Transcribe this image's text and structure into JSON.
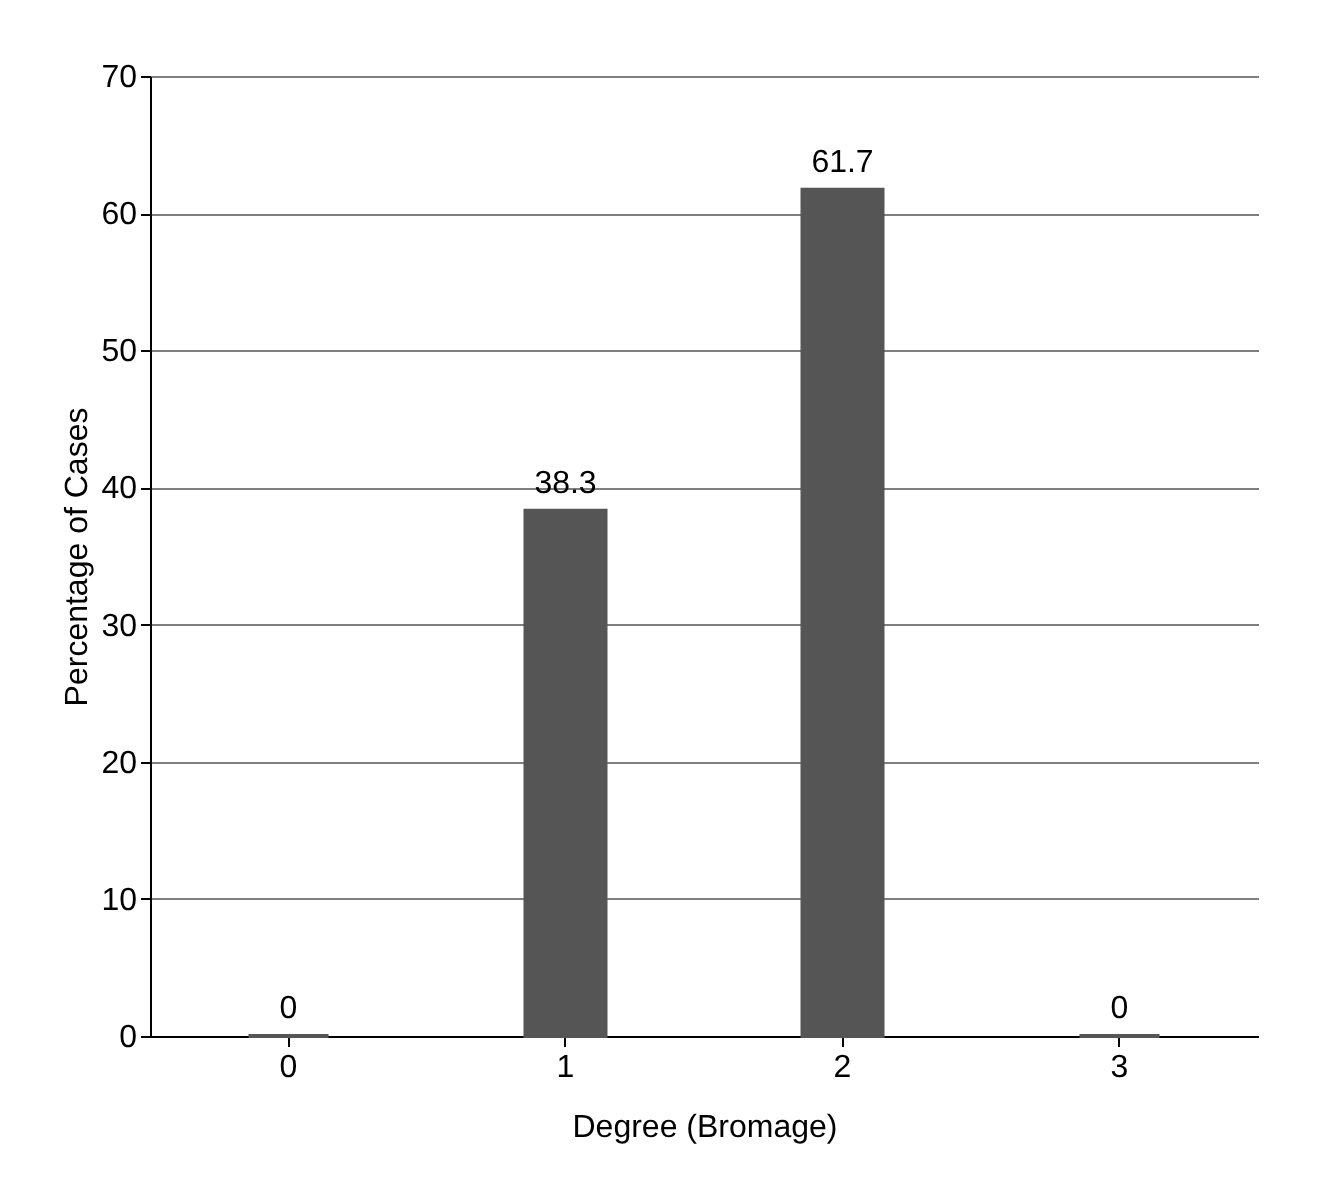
{
  "chart_data": {
    "type": "bar",
    "xlabel": "Degree     (Bromage)",
    "ylabel": "Percentage of Cases",
    "categories": [
      "0",
      "1",
      "2",
      "3"
    ],
    "values": [
      0,
      38.3,
      61.7,
      0
    ],
    "color": "#555555",
    "ylim": [
      0,
      70
    ],
    "yticks": [
      0,
      10,
      20,
      30,
      40,
      50,
      60,
      70
    ],
    "grid": "y",
    "data_labels": true
  }
}
